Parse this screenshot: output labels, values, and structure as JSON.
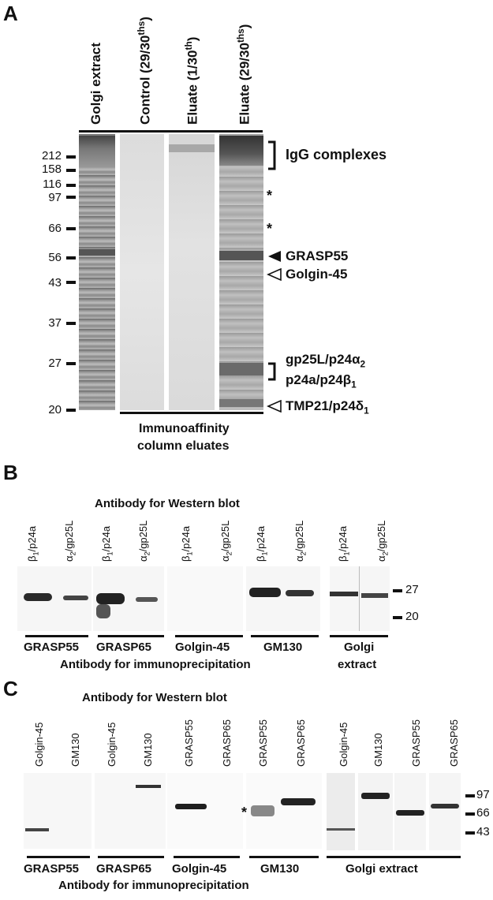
{
  "panel_a": {
    "letter": "A",
    "lane_labels": [
      "Golgi extract",
      "Control (29/30",
      "Eluate (1/30",
      "Eluate (29/30"
    ],
    "lane_label_sups": [
      "",
      "ths",
      "th",
      "ths"
    ],
    "lane_label_close": [
      "",
      ")",
      ")",
      ")"
    ],
    "mw_markers": [
      "212",
      "158",
      "116",
      "97",
      "66",
      "56",
      "43",
      "37",
      "27",
      "20"
    ],
    "right_labels": {
      "igg": "IgG complexes",
      "star": "*",
      "grasp55": "GRASP55",
      "golgin45": "Golgin-45",
      "gp25l_a": "gp25L/p24α",
      "gp25l_a_sub": "2",
      "gp25l_b": "p24a/p24β",
      "gp25l_b_sub": "1",
      "tmp21": "TMP21/p24δ",
      "tmp21_sub": "1"
    },
    "footer_line1": "Immunoaffinity",
    "footer_line2": "column eluates"
  },
  "panel_b": {
    "letter": "B",
    "title": "Antibody for Western blot",
    "lane_labels": [
      {
        "greek": "β",
        "sub": "1",
        "rest": "/p24a"
      },
      {
        "greek": "α",
        "sub": "2",
        "rest": "/gp25L"
      },
      {
        "greek": "β",
        "sub": "1",
        "rest": "/p24a"
      },
      {
        "greek": "α",
        "sub": "2",
        "rest": "/gp25L"
      },
      {
        "greek": "β",
        "sub": "1",
        "rest": "/p24a"
      },
      {
        "greek": "α",
        "sub": "2",
        "rest": "/gp25L"
      },
      {
        "greek": "β",
        "sub": "1",
        "rest": "/p24a"
      },
      {
        "greek": "α",
        "sub": "2",
        "rest": "/gp25L"
      },
      {
        "greek": "β",
        "sub": "1",
        "rest": "/p24a"
      },
      {
        "greek": "α",
        "sub": "2",
        "rest": "/gp25L"
      }
    ],
    "mw_markers": [
      "27",
      "20"
    ],
    "groups": [
      "GRASP55",
      "GRASP65",
      "Golgin-45",
      "GM130"
    ],
    "right_group_line1": "Golgi",
    "right_group_line2": "extract",
    "footer": "Antibody for immunoprecipitation"
  },
  "panel_c": {
    "letter": "C",
    "title": "Antibody for Western blot",
    "lane_labels": [
      "Golgin-45",
      "GM130",
      "Golgin-45",
      "GM130",
      "GRASP55",
      "GRASP65",
      "GRASP55",
      "GRASP65",
      "Golgin-45",
      "GM130",
      "GRASP55",
      "GRASP65"
    ],
    "mw_markers": [
      "97",
      "66",
      "43"
    ],
    "star": "*",
    "groups": [
      "GRASP55",
      "GRASP65",
      "Golgin-45",
      "GM130"
    ],
    "right_group": "Golgi extract",
    "footer": "Antibody for immunoprecipitation"
  }
}
